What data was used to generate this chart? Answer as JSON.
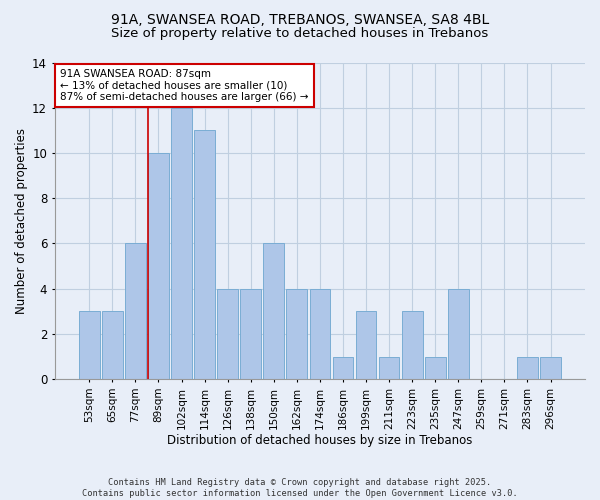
{
  "title": "91A, SWANSEA ROAD, TREBANOS, SWANSEA, SA8 4BL",
  "subtitle": "Size of property relative to detached houses in Trebanos",
  "xlabel": "Distribution of detached houses by size in Trebanos",
  "ylabel": "Number of detached properties",
  "bar_labels": [
    "53sqm",
    "65sqm",
    "77sqm",
    "89sqm",
    "102sqm",
    "114sqm",
    "126sqm",
    "138sqm",
    "150sqm",
    "162sqm",
    "174sqm",
    "186sqm",
    "199sqm",
    "211sqm",
    "223sqm",
    "235sqm",
    "247sqm",
    "259sqm",
    "271sqm",
    "283sqm",
    "296sqm"
  ],
  "bar_values": [
    3,
    3,
    6,
    10,
    12,
    11,
    4,
    4,
    6,
    4,
    4,
    1,
    3,
    1,
    3,
    1,
    4,
    0,
    0,
    1,
    1
  ],
  "bar_color": "#aec6e8",
  "bar_edge_color": "#7aadd4",
  "red_line_index": 3,
  "annotation_title": "91A SWANSEA ROAD: 87sqm",
  "annotation_line1": "← 13% of detached houses are smaller (10)",
  "annotation_line2": "87% of semi-detached houses are larger (66) →",
  "annotation_box_color": "#ffffff",
  "annotation_border_color": "#cc0000",
  "footer_line1": "Contains HM Land Registry data © Crown copyright and database right 2025.",
  "footer_line2": "Contains public sector information licensed under the Open Government Licence v3.0.",
  "ylim": [
    0,
    14
  ],
  "yticks": [
    0,
    2,
    4,
    6,
    8,
    10,
    12,
    14
  ],
  "grid_color": "#c0cfe0",
  "background_color": "#e8eef8",
  "title_fontsize": 10,
  "subtitle_fontsize": 9.5
}
